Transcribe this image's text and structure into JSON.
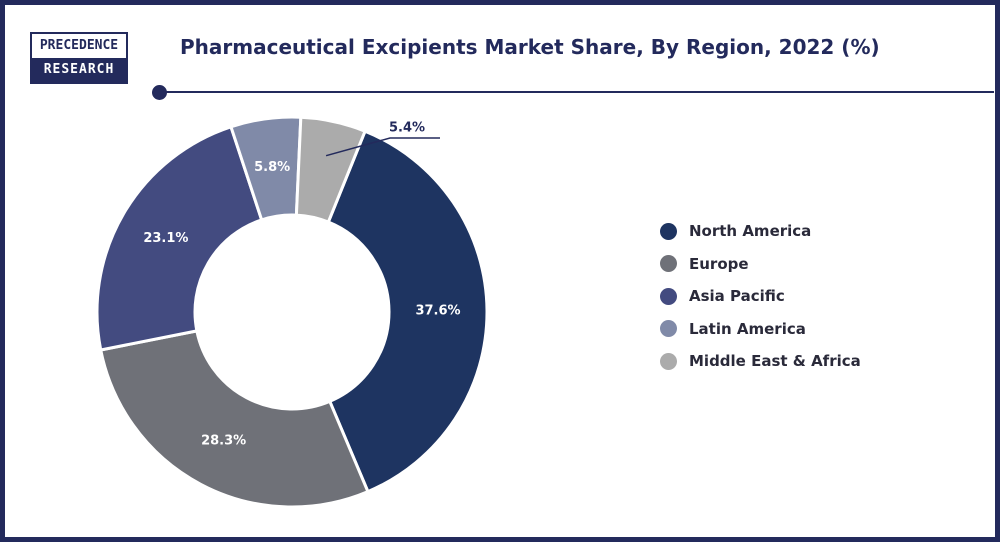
{
  "logo": {
    "line1": "PRECEDENCE",
    "line2": "RESEARCH"
  },
  "title": "Pharmaceutical Excipients Market Share, By Region, 2022 (%)",
  "colors": {
    "frame": "#232a5c",
    "north_america": "#1e3461",
    "europe": "#6f7178",
    "asia_pacific": "#434b80",
    "latin_america": "#808aa8",
    "middle_east_africa": "#ababab"
  },
  "chart_data": {
    "type": "pie",
    "variant": "donut",
    "title": "Pharmaceutical Excipients Market Share, By Region, 2022 (%)",
    "categories": [
      "North America",
      "Europe",
      "Asia Pacific",
      "Latin America",
      "Middle East & Africa"
    ],
    "values": [
      37.6,
      28.3,
      23.1,
      5.8,
      5.4
    ],
    "labels": [
      "37.6%",
      "28.3%",
      "23.1%",
      "5.8%",
      "5.4%"
    ],
    "colors": [
      "#1e3461",
      "#6f7178",
      "#434b80",
      "#808aa8",
      "#ababab"
    ],
    "legend_position": "right"
  }
}
